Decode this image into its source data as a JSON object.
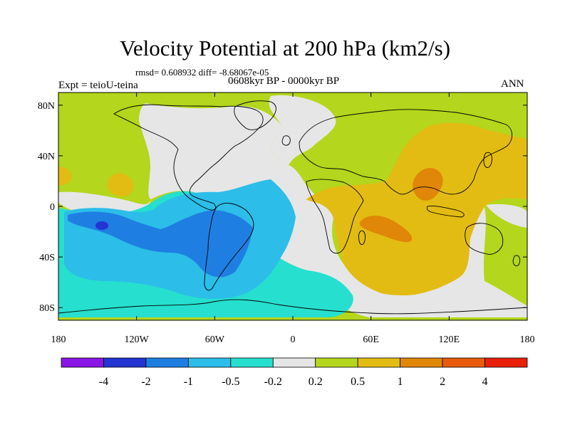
{
  "title": "Velocity Potential at 200 hPa (km2/s)",
  "stats": "rmsd= 0.608932 diff= -8.68067e-05",
  "experiment": "Expt = teioU-teina",
  "period": "0608kyr BP - 0000kyr BP",
  "season": "ANN",
  "map": {
    "projection": "cylindrical equidistant",
    "lon_range": [
      -180,
      180
    ],
    "lat_range": [
      -90,
      90
    ],
    "x_ticks": [
      {
        "lon": -180,
        "label": "180"
      },
      {
        "lon": -120,
        "label": "120W"
      },
      {
        "lon": -60,
        "label": "60W"
      },
      {
        "lon": 0,
        "label": "0"
      },
      {
        "lon": 60,
        "label": "60E"
      },
      {
        "lon": 120,
        "label": "120E"
      },
      {
        "lon": 180,
        "label": "180"
      }
    ],
    "y_ticks": [
      {
        "lat": 80,
        "label": "80N"
      },
      {
        "lat": 40,
        "label": "40N"
      },
      {
        "lat": 0,
        "label": "0"
      },
      {
        "lat": -40,
        "label": "40S"
      },
      {
        "lat": -80,
        "label": "80S"
      }
    ]
  },
  "colorbar": {
    "colors": [
      "#8a16e6",
      "#2334d2",
      "#1f7ee2",
      "#2cbde9",
      "#26dfcf",
      "#e6e6e6",
      "#b4d61c",
      "#e2bc12",
      "#e08608",
      "#e85b0c",
      "#e8200a"
    ],
    "labels": [
      "-4",
      "-2",
      "-1",
      "-0.5",
      "-0.2",
      "0.2",
      "0.5",
      "1",
      "2",
      "4"
    ]
  },
  "chart_data": {
    "type": "filled-contour map",
    "variable": "200 hPa velocity potential difference",
    "units": "km2/s",
    "levels": [
      -4,
      -2,
      -1,
      -0.5,
      -0.2,
      0.2,
      0.5,
      1,
      2,
      4
    ],
    "regions": [
      {
        "id": "background",
        "min": 0.2,
        "max": 0.5,
        "desc": "high-latitude and mid-Pacific band"
      },
      {
        "id": "near_zero_west",
        "min": -0.2,
        "max": 0.2,
        "desc": "North Pacific to North America, western North Atlantic"
      },
      {
        "id": "near_zero_east",
        "min": -0.2,
        "max": 0.2,
        "desc": "Eurasia rim, Southern Ocean and mid-Pacific"
      },
      {
        "id": "teal_west",
        "min": -0.5,
        "max": -0.2,
        "desc": "tropical Pacific and Atlantic"
      },
      {
        "id": "cyan_main",
        "min": -1,
        "max": -0.5,
        "desc": "eastern Pacific and South America"
      },
      {
        "id": "blue_minimum",
        "min": -2,
        "max": -1,
        "desc": "central Pacific near 10S"
      },
      {
        "id": "navy_spot",
        "min": -4,
        "max": -2,
        "desc": "minimum near 150W 10S"
      },
      {
        "id": "asia_positive",
        "min": 0.5,
        "max": 1,
        "desc": "Africa, Indian Ocean, Asia"
      },
      {
        "id": "orange_india",
        "min": 1,
        "max": 2,
        "desc": "southern Indian Ocean near 15S 60E"
      },
      {
        "id": "orange_se_asia",
        "min": 1,
        "max": 2,
        "desc": "Southeast Asia near 20N 100E"
      },
      {
        "id": "west_pacific_warm",
        "min": 0.5,
        "max": 1,
        "desc": "west of dateline near 30N 170W"
      }
    ]
  }
}
